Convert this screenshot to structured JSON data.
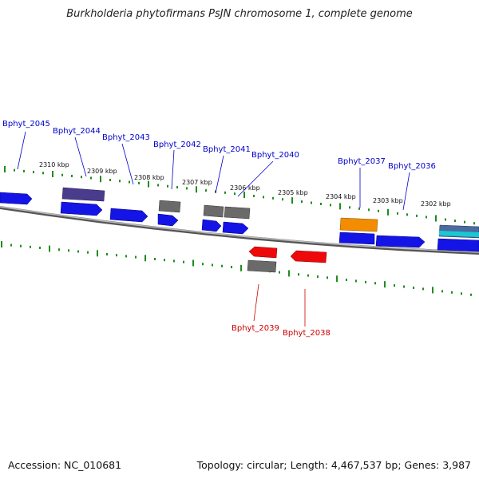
{
  "title": "Burkholderia phytofirmans PsJN chromosome 1, complete genome",
  "footer": {
    "accession": "Accession: NC_010681",
    "summary": "Topology: circular; Length: 4,467,537 bp; Genes: 3,987"
  },
  "colors": {
    "forward_gene": "#1414e6",
    "reverse_gene": "#ee0a0a",
    "pseudo_gene": "#6a6a6a",
    "rna_gene": "#f28c00",
    "highlight_gene": "#4a3c8c",
    "cyan_gene": "#19c8d2",
    "forward_label": "#0000cc",
    "reverse_label": "#cc0000",
    "ticks": "#1e8c1e",
    "backbone": "#888888"
  },
  "kbp_labels": [
    "2310 kbp",
    "2309 kbp",
    "2308 kbp",
    "2307 kbp",
    "2306 kbp",
    "2305 kbp",
    "2304 kbp",
    "2303 kbp",
    "2302 kbp"
  ],
  "gene_labels_forward": [
    "Bphyt_2045",
    "Bphyt_2044",
    "Bphyt_2043",
    "Bphyt_2042",
    "Bphyt_2041",
    "Bphyt_2040",
    "Bphyt_2037",
    "Bphyt_2036"
  ],
  "gene_labels_reverse": [
    "Bphyt_2039",
    "Bphyt_2038"
  ]
}
